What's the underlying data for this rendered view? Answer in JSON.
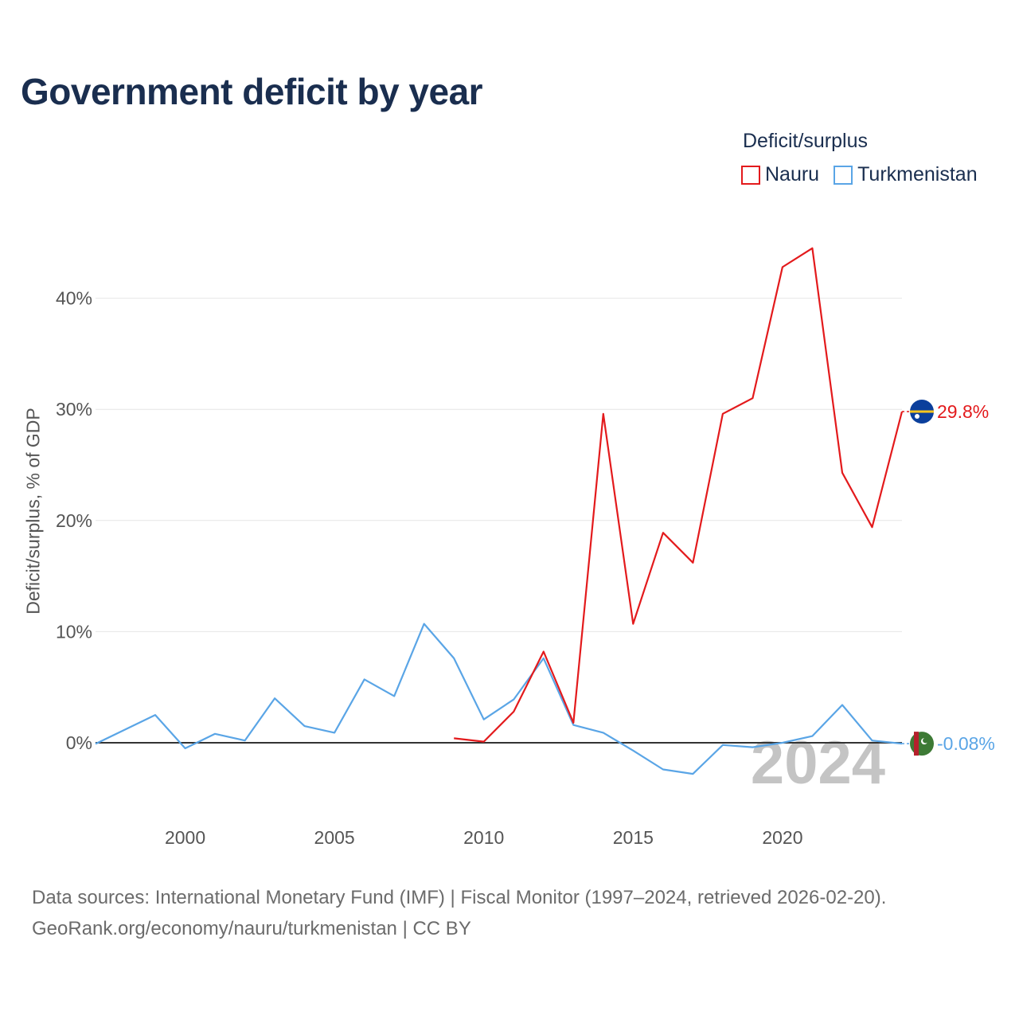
{
  "page": {
    "title": "Government deficit by year",
    "source_line1": "Data sources: International Monetary Fund (IMF) | Fiscal Monitor (1997–2024, retrieved 2026-02-20).",
    "source_line2": "GeoRank.org/economy/nauru/turkmenistan | CC BY"
  },
  "legend": {
    "title": "Deficit/surplus",
    "items": [
      {
        "label": "Nauru",
        "color": "#e31a1c"
      },
      {
        "label": "Turkmenistan",
        "color": "#5aa5e6"
      }
    ]
  },
  "chart_data": {
    "type": "line",
    "title": "Government deficit by year",
    "xlabel": "",
    "ylabel": "Deficit/surplus, % of GDP",
    "xlim": [
      1997,
      2024
    ],
    "ylim": [
      -5,
      47
    ],
    "x_ticks": [
      2000,
      2005,
      2010,
      2015,
      2020
    ],
    "x_tick_labels": [
      "2000",
      "2005",
      "2010",
      "2015",
      "2020"
    ],
    "y_ticks": [
      0,
      10,
      20,
      30,
      40
    ],
    "y_tick_labels": [
      "0%",
      "10%",
      "20%",
      "30%",
      "40%"
    ],
    "grid": true,
    "watermark_year": "2024",
    "series": [
      {
        "name": "Nauru",
        "color": "#e31a1c",
        "end_label": "29.8%",
        "flag": "nauru-flag-icon",
        "x": [
          2009,
          2010,
          2011,
          2012,
          2013,
          2014,
          2015,
          2016,
          2017,
          2018,
          2019,
          2020,
          2021,
          2022,
          2023,
          2024
        ],
        "values": [
          0.4,
          0.1,
          2.8,
          8.2,
          1.8,
          29.6,
          10.7,
          18.9,
          16.2,
          29.6,
          31.0,
          42.8,
          44.5,
          24.3,
          19.4,
          29.8
        ]
      },
      {
        "name": "Turkmenistan",
        "color": "#5aa5e6",
        "end_label": "-0.08%",
        "flag": "turkmenistan-flag-icon",
        "x": [
          1997,
          1998,
          1999,
          2000,
          2001,
          2002,
          2003,
          2004,
          2005,
          2006,
          2007,
          2008,
          2009,
          2010,
          2011,
          2012,
          2013,
          2014,
          2015,
          2016,
          2017,
          2018,
          2019,
          2020,
          2021,
          2022,
          2023,
          2024
        ],
        "values": [
          -0.1,
          1.2,
          2.5,
          -0.5,
          0.8,
          0.2,
          4.0,
          1.5,
          0.9,
          5.7,
          4.2,
          10.7,
          7.6,
          2.1,
          3.9,
          7.6,
          1.6,
          0.9,
          -0.7,
          -2.4,
          -2.8,
          -0.2,
          -0.4,
          0.0,
          0.6,
          3.4,
          0.2,
          -0.08
        ]
      }
    ]
  }
}
